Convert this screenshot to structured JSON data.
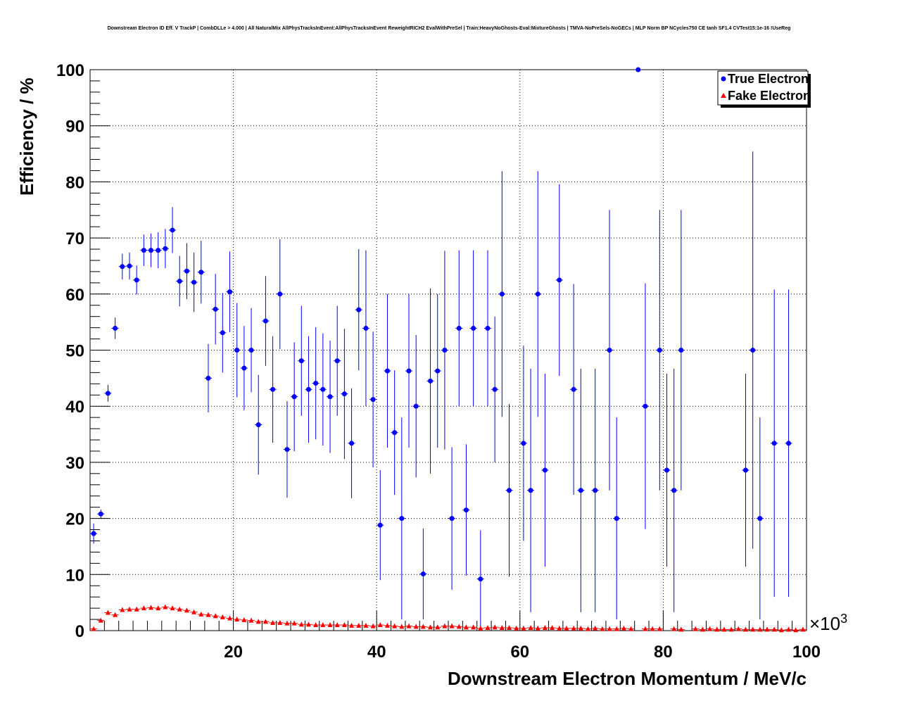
{
  "chart_data": {
    "type": "scatter",
    "title": "Downstream Electron ID Eff. V TrackP | CombDLLe > 4.000 | All NaturalMix AllPhysTracksInEvent:AllPhysTracksInEvent ReweightRICH2 EvalWithPreSel | Train:HeavyNoGhosts-Eval:MixtureGhosts | TMVA-NoPreSels-NoGECs | MLP Norm BP NCycles750 CE tanh SF1.4 CVTest15:1e-16 !UseReg",
    "xlabel": "Downstream Electron Momentum / MeV/c",
    "ylabel": "Efficiency / %",
    "x_multiplier": "×10",
    "x_multiplier_exp": "3",
    "xlim": [
      0,
      100
    ],
    "ylim": [
      0,
      100
    ],
    "x_ticks": [
      20,
      40,
      60,
      80,
      100
    ],
    "y_ticks": [
      0,
      10,
      20,
      30,
      40,
      50,
      60,
      70,
      80,
      90,
      100
    ],
    "grid": true,
    "legend_position": "top-right",
    "series": [
      {
        "name": "True Electron",
        "color": "#0000ff",
        "marker": "circle",
        "points": [
          [
            0.5,
            17.3,
            15.5,
            19.1
          ],
          [
            1.5,
            20.8,
            20.0,
            21.6
          ],
          [
            2.5,
            42.3,
            40.8,
            43.8
          ],
          [
            3.5,
            53.9,
            52.0,
            55.8
          ],
          [
            4.5,
            64.9,
            62.6,
            67.2
          ],
          [
            5.5,
            65.0,
            62.6,
            67.4
          ],
          [
            6.5,
            62.5,
            59.9,
            65.1
          ],
          [
            7.5,
            67.8,
            65.0,
            70.6
          ],
          [
            8.5,
            67.8,
            64.8,
            70.8
          ],
          [
            9.5,
            67.8,
            64.6,
            71.0
          ],
          [
            10.5,
            68.1,
            64.6,
            71.6
          ],
          [
            11.5,
            71.4,
            67.3,
            75.5
          ],
          [
            12.5,
            62.3,
            57.8,
            66.8
          ],
          [
            13.5,
            64.1,
            59.1,
            69.1
          ],
          [
            14.5,
            62.1,
            56.8,
            67.4
          ],
          [
            15.5,
            63.9,
            58.3,
            69.5
          ],
          [
            16.5,
            45.0,
            38.9,
            51.1
          ],
          [
            17.5,
            57.3,
            51.0,
            63.6
          ],
          [
            18.5,
            53.1,
            46.0,
            60.2
          ],
          [
            19.5,
            60.4,
            53.2,
            67.6
          ],
          [
            20.5,
            50.0,
            41.6,
            58.4
          ],
          [
            21.5,
            46.8,
            39.3,
            54.3
          ],
          [
            22.5,
            50.0,
            42.5,
            57.5
          ],
          [
            23.5,
            36.7,
            27.8,
            45.6
          ],
          [
            24.5,
            55.2,
            47.2,
            63.2
          ],
          [
            25.5,
            43.0,
            33.5,
            52.5
          ],
          [
            26.5,
            60.0,
            50.2,
            69.8
          ],
          [
            27.5,
            32.3,
            23.7,
            40.9
          ],
          [
            28.5,
            41.7,
            32.0,
            51.4
          ],
          [
            29.5,
            48.1,
            38.3,
            57.9
          ],
          [
            30.5,
            43.0,
            33.5,
            52.5
          ],
          [
            31.5,
            44.1,
            34.1,
            54.1
          ],
          [
            32.5,
            43.0,
            33.0,
            53.0
          ],
          [
            33.5,
            41.7,
            31.7,
            51.7
          ],
          [
            34.5,
            48.1,
            38.3,
            57.9
          ],
          [
            35.5,
            42.2,
            30.6,
            53.8
          ],
          [
            36.5,
            33.4,
            23.6,
            43.2
          ],
          [
            37.5,
            57.2,
            46.4,
            68.0
          ],
          [
            38.5,
            53.9,
            40.0,
            67.8
          ],
          [
            39.5,
            41.2,
            29.1,
            53.3
          ],
          [
            40.5,
            18.8,
            9.0,
            28.6
          ],
          [
            41.5,
            46.3,
            32.6,
            60.0
          ],
          [
            42.5,
            35.3,
            24.2,
            46.4
          ],
          [
            43.5,
            20.0,
            2.0,
            38.0
          ],
          [
            44.5,
            46.3,
            32.6,
            60.0
          ],
          [
            45.5,
            40.0,
            27.3,
            52.7
          ],
          [
            46.5,
            10.1,
            2.0,
            18.2
          ],
          [
            47.5,
            44.5,
            28.0,
            61.0
          ],
          [
            48.5,
            46.3,
            32.6,
            60.0
          ],
          [
            49.5,
            50.0,
            32.3,
            67.7
          ],
          [
            50.5,
            20.0,
            7.3,
            32.7
          ],
          [
            51.5,
            53.9,
            40.0,
            67.8
          ],
          [
            52.5,
            21.5,
            9.8,
            33.2
          ],
          [
            53.5,
            53.9,
            40.0,
            67.8
          ],
          [
            54.5,
            9.2,
            0.5,
            17.9
          ],
          [
            55.5,
            53.9,
            40.0,
            67.8
          ],
          [
            56.5,
            43.0,
            30.0,
            56.0
          ],
          [
            57.5,
            60.0,
            38.1,
            81.9
          ],
          [
            58.5,
            25.0,
            9.6,
            40.4
          ],
          [
            60.5,
            33.4,
            16.0,
            50.8
          ],
          [
            61.5,
            25.0,
            3.3,
            46.7
          ],
          [
            62.5,
            60.0,
            38.1,
            81.9
          ],
          [
            63.5,
            28.6,
            11.4,
            45.8
          ],
          [
            65.5,
            62.5,
            45.4,
            79.6
          ],
          [
            67.5,
            43.0,
            24.2,
            61.8
          ],
          [
            68.5,
            25.0,
            3.3,
            46.7
          ],
          [
            70.5,
            25.0,
            3.3,
            46.7
          ],
          [
            72.5,
            50.0,
            25.0,
            75.0
          ],
          [
            73.5,
            20.0,
            2.0,
            38.0
          ],
          [
            76.5,
            100.0,
            100.0,
            100.0
          ],
          [
            77.5,
            40.0,
            18.1,
            61.9
          ],
          [
            79.5,
            50.0,
            25.0,
            75.0
          ],
          [
            80.5,
            28.6,
            11.4,
            45.8
          ],
          [
            81.5,
            25.0,
            3.3,
            46.7
          ],
          [
            82.5,
            50.0,
            25.0,
            75.0
          ],
          [
            91.5,
            28.6,
            11.4,
            45.8
          ],
          [
            92.5,
            50.0,
            14.6,
            85.4
          ],
          [
            93.5,
            20.0,
            2.0,
            38.0
          ],
          [
            95.5,
            33.4,
            6.0,
            60.8
          ],
          [
            97.5,
            33.4,
            6.0,
            60.8
          ]
        ]
      },
      {
        "name": "Fake Electron",
        "color": "#ff0000",
        "marker": "triangle",
        "points": [
          [
            0.5,
            0.3
          ],
          [
            1.5,
            1.8
          ],
          [
            2.5,
            3.2
          ],
          [
            3.5,
            2.8
          ],
          [
            4.5,
            3.7
          ],
          [
            5.5,
            3.8
          ],
          [
            6.5,
            3.8
          ],
          [
            7.5,
            4.0
          ],
          [
            8.5,
            4.1
          ],
          [
            9.5,
            4.0
          ],
          [
            10.5,
            4.2
          ],
          [
            11.5,
            4.0
          ],
          [
            12.5,
            3.8
          ],
          [
            13.5,
            3.6
          ],
          [
            14.5,
            3.3
          ],
          [
            15.5,
            2.9
          ],
          [
            16.5,
            2.8
          ],
          [
            17.5,
            2.6
          ],
          [
            18.5,
            2.4
          ],
          [
            19.5,
            2.2
          ],
          [
            20.5,
            2.0
          ],
          [
            21.5,
            1.9
          ],
          [
            22.5,
            1.8
          ],
          [
            23.5,
            1.6
          ],
          [
            24.5,
            1.6
          ],
          [
            25.5,
            1.4
          ],
          [
            26.5,
            1.4
          ],
          [
            27.5,
            1.3
          ],
          [
            28.5,
            1.3
          ],
          [
            29.5,
            1.1
          ],
          [
            30.5,
            1.1
          ],
          [
            31.5,
            1.0
          ],
          [
            32.5,
            1.0
          ],
          [
            33.5,
            1.0
          ],
          [
            34.5,
            1.0
          ],
          [
            35.5,
            1.0
          ],
          [
            36.5,
            0.9
          ],
          [
            37.5,
            0.9
          ],
          [
            38.5,
            0.9
          ],
          [
            39.5,
            0.8
          ],
          [
            40.5,
            1.0
          ],
          [
            41.5,
            0.9
          ],
          [
            42.5,
            0.8
          ],
          [
            43.5,
            0.7
          ],
          [
            44.5,
            0.8
          ],
          [
            45.5,
            0.7
          ],
          [
            46.5,
            0.7
          ],
          [
            47.5,
            0.6
          ],
          [
            48.5,
            0.6
          ],
          [
            49.5,
            0.8
          ],
          [
            50.5,
            0.8
          ],
          [
            51.5,
            0.7
          ],
          [
            52.5,
            0.6
          ],
          [
            53.5,
            0.6
          ],
          [
            54.5,
            0.4
          ],
          [
            55.5,
            0.5
          ],
          [
            56.5,
            0.6
          ],
          [
            57.5,
            0.5
          ],
          [
            58.5,
            0.5
          ],
          [
            59.5,
            0.4
          ],
          [
            60.5,
            0.4
          ],
          [
            61.5,
            0.5
          ],
          [
            62.5,
            0.4
          ],
          [
            63.5,
            0.5
          ],
          [
            64.5,
            0.5
          ],
          [
            65.5,
            0.4
          ],
          [
            66.5,
            0.4
          ],
          [
            67.5,
            0.4
          ],
          [
            68.5,
            0.4
          ],
          [
            69.5,
            0.3
          ],
          [
            70.5,
            0.4
          ],
          [
            71.5,
            0.3
          ],
          [
            72.5,
            0.3
          ],
          [
            73.5,
            0.3
          ],
          [
            74.5,
            0.4
          ],
          [
            75.5,
            0.3
          ],
          [
            77.5,
            0.3
          ],
          [
            78.5,
            0.3
          ],
          [
            79.5,
            0.3
          ],
          [
            81.5,
            0.3
          ],
          [
            82.5,
            0.2
          ],
          [
            84.5,
            0.3
          ],
          [
            85.5,
            0.2
          ],
          [
            86.5,
            0.3
          ],
          [
            87.5,
            0.2
          ],
          [
            88.5,
            0.2
          ],
          [
            89.5,
            0.2
          ],
          [
            90.5,
            0.3
          ],
          [
            91.5,
            0.2
          ],
          [
            92.5,
            0.2
          ],
          [
            93.5,
            0.2
          ],
          [
            94.5,
            0.2
          ],
          [
            95.5,
            0.2
          ],
          [
            96.5,
            0.1
          ],
          [
            97.5,
            0.2
          ],
          [
            98.5,
            0.1
          ],
          [
            99.5,
            0.2
          ]
        ]
      }
    ]
  }
}
